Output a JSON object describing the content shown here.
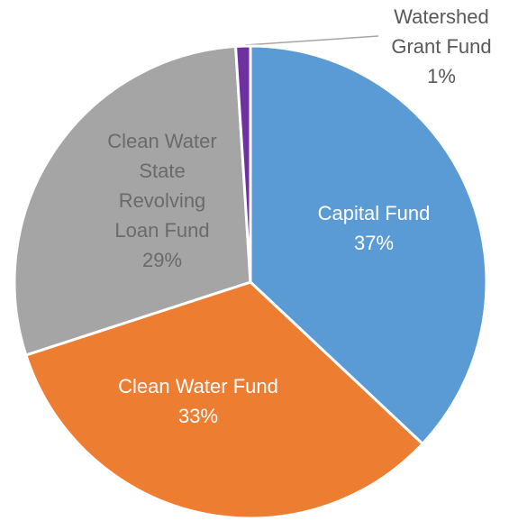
{
  "chart_data": {
    "type": "pie",
    "categories": [
      "Capital Fund",
      "Clean Water Fund",
      "Clean Water State Revolving Loan Fund",
      "Watershed Grant Fund"
    ],
    "values": [
      37,
      33,
      29,
      1
    ],
    "value_labels": [
      "37%",
      "33%",
      "29%",
      "1%"
    ],
    "colors": [
      "#5b9bd5",
      "#ed7d31",
      "#a5a5a5",
      "#7030a0"
    ]
  }
}
